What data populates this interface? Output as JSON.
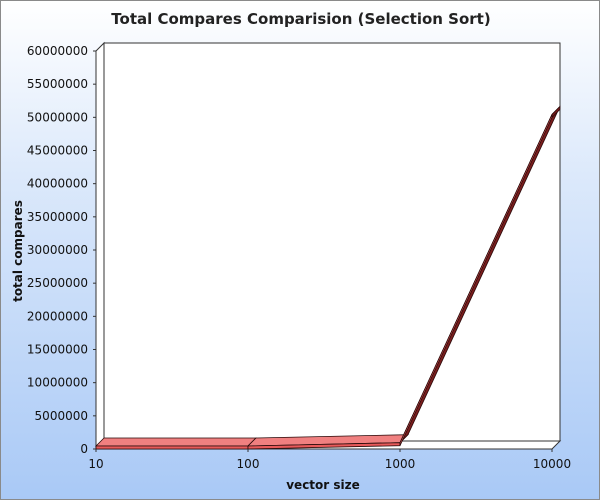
{
  "chart_data": {
    "type": "line",
    "style": "3d-ribbon",
    "title": "Total Compares Comparision (Selection Sort)",
    "xlabel": "vector size",
    "ylabel": "total compares",
    "x_scale": "log",
    "x": [
      10,
      100,
      1000,
      10000
    ],
    "x_tick_labels": [
      "10",
      "100",
      "1000",
      "10000"
    ],
    "ylim": [
      0,
      60000000
    ],
    "y_ticks": [
      0,
      5000000,
      10000000,
      15000000,
      20000000,
      25000000,
      30000000,
      35000000,
      40000000,
      45000000,
      50000000,
      55000000,
      60000000
    ],
    "y_tick_labels": [
      "0",
      "5000000",
      "10000000",
      "15000000",
      "20000000",
      "25000000",
      "30000000",
      "35000000",
      "40000000",
      "45000000",
      "50000000",
      "55000000",
      "60000000"
    ],
    "series": [
      {
        "name": "total compares",
        "values": [
          45,
          4950,
          499500,
          49995000
        ]
      }
    ],
    "colors": {
      "series_front": "#e85a5a",
      "series_top": "#f08080",
      "series_dark": "#7a1d1d",
      "plot_wall": "#ffffff",
      "plot_border": "#333333"
    }
  }
}
